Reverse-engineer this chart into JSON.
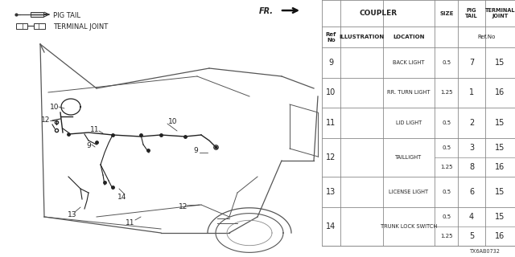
{
  "bg_color": "#ffffff",
  "legend_pig_tail": "PIG TAIL",
  "legend_terminal": "TERMINAL JOINT",
  "fr_label": "FR.",
  "diagram_code": "TX6AB0732",
  "table_headers": {
    "coupler": "COUPLER",
    "size": "SIZE",
    "pig_tail": "PIG\nTAIL",
    "terminal_joint": "TERMINAL\nJOINT",
    "ref_no": "Ref\nNo",
    "illustration": "ILLUSTRATION",
    "location": "LOCATION",
    "ref_no_col": "Ref.No"
  },
  "rows": [
    {
      "ref": "9",
      "location": "BACK LIGHT",
      "size": "0.5",
      "pig_tail": "7",
      "terminal": "15",
      "sub_rows": 1
    },
    {
      "ref": "10",
      "location": "RR. TURN LIGHT",
      "size": "1.25",
      "pig_tail": "1",
      "terminal": "16",
      "sub_rows": 1
    },
    {
      "ref": "11",
      "location": "LID LIGHT",
      "size": "0.5",
      "pig_tail": "2",
      "terminal": "15",
      "sub_rows": 1
    },
    {
      "ref": "12",
      "location": "TAILLIGHT",
      "size": "0.5",
      "pig_tail": "3",
      "terminal": "15",
      "sub_rows": 2,
      "row2": {
        "size": "1.25",
        "pig_tail": "8",
        "terminal": "16"
      }
    },
    {
      "ref": "13",
      "location": "LICENSE LIGHT",
      "size": "0.5",
      "pig_tail": "6",
      "terminal": "15",
      "sub_rows": 1
    },
    {
      "ref": "14",
      "location": "TRUNK LOCK SWITCH",
      "size": "0.5",
      "pig_tail": "4",
      "terminal": "15",
      "sub_rows": 2,
      "row2": {
        "size": "1.25",
        "pig_tail": "5",
        "terminal": "16"
      }
    }
  ],
  "car_color": "#555555",
  "harness_color": "#222222",
  "label_color": "#222222",
  "text_color": "#222222",
  "line_color": "#888888",
  "header_fontsize": 5.0,
  "cell_fontsize": 5.5,
  "ref_fontsize": 7.5,
  "table_split": 0.625
}
